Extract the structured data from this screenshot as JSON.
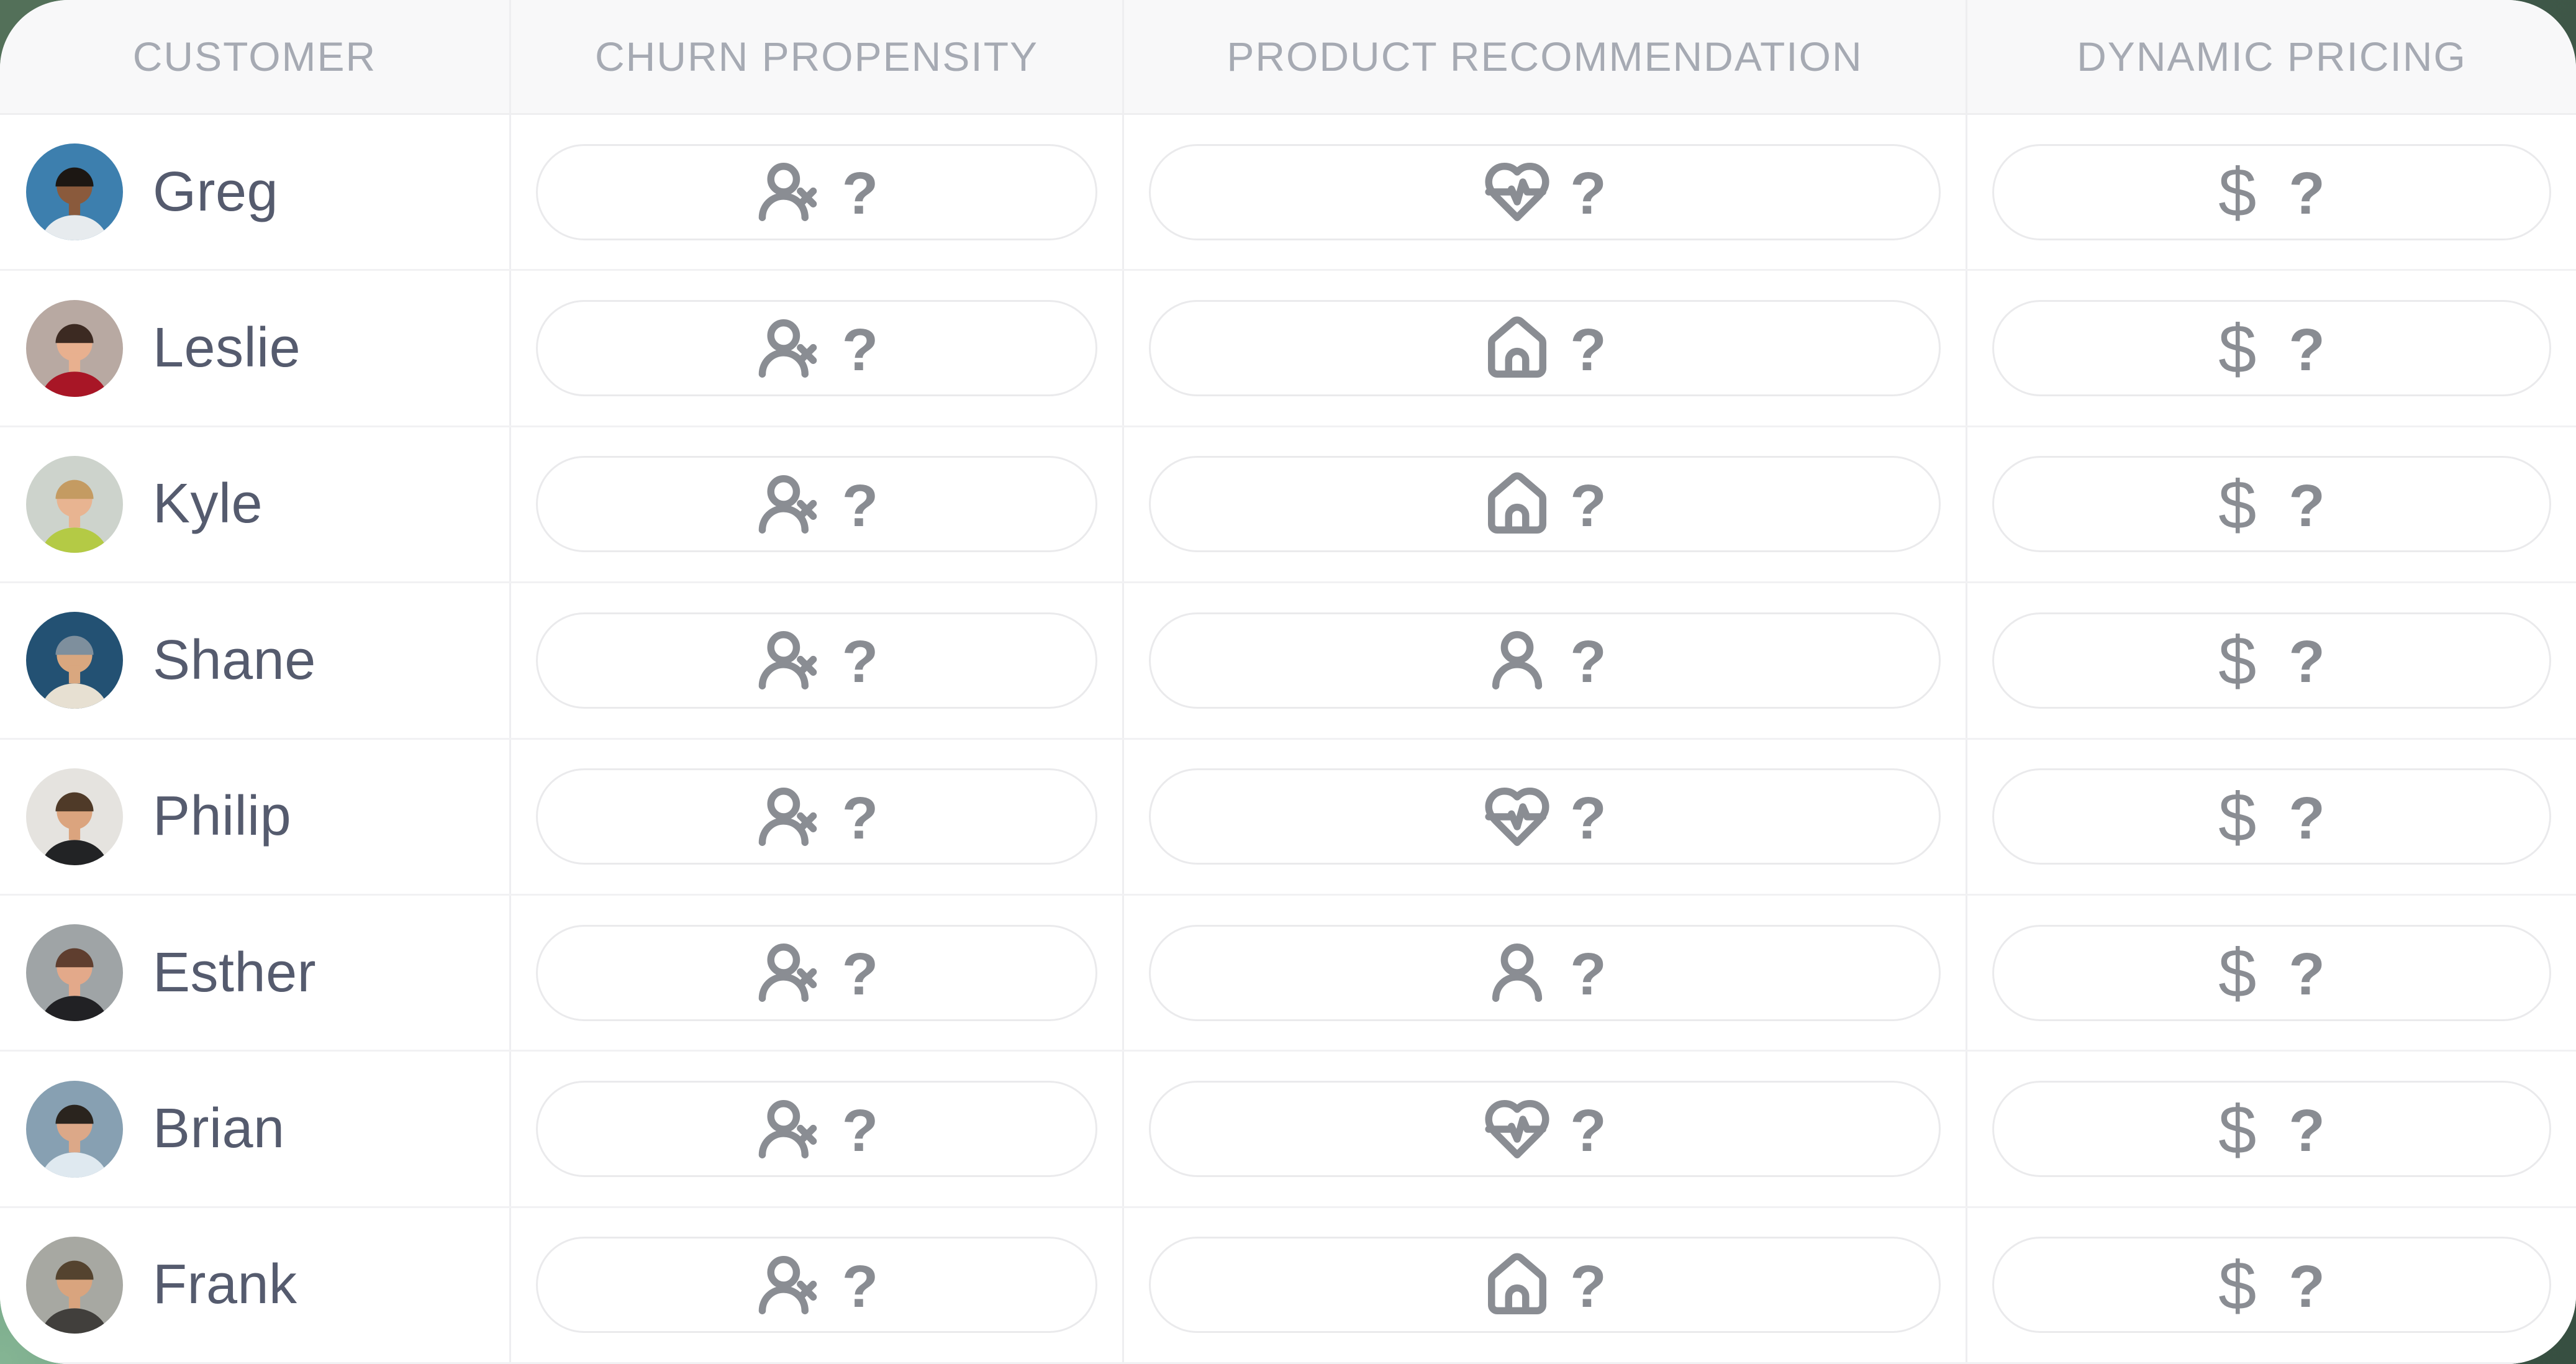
{
  "header": {
    "columns": [
      "CUSTOMER",
      "CHURN PROPENSITY",
      "PRODUCT RECOMMENDATION",
      "DYNAMIC PRICING"
    ]
  },
  "rows": [
    {
      "name": "Greg",
      "avatar": {
        "alt": "man with glasses, blue background",
        "bg": "#3d7fae",
        "skin": "#8a5a3c",
        "hair": "#1c1713",
        "shirt": "#e7ebee"
      },
      "churn": {
        "icon": "user-x",
        "value": "?"
      },
      "product": {
        "icon": "heart-pulse",
        "value": "?"
      },
      "pricing": {
        "icon": "dollar-sign",
        "icon_char": "$",
        "value": "?"
      }
    },
    {
      "name": "Leslie",
      "avatar": {
        "alt": "smiling woman in red sweater",
        "bg": "#b8a9a2",
        "skin": "#e8b08f",
        "hair": "#3c2a22",
        "shirt": "#a81626"
      },
      "churn": {
        "icon": "user-x",
        "value": "?"
      },
      "product": {
        "icon": "house",
        "value": "?"
      },
      "pricing": {
        "icon": "dollar-sign",
        "icon_char": "$",
        "value": "?"
      }
    },
    {
      "name": "Kyle",
      "avatar": {
        "alt": "woman in lime green sweater",
        "bg": "#cdd3cc",
        "skin": "#e8b491",
        "hair": "#c49b62",
        "shirt": "#b4ca45"
      },
      "churn": {
        "icon": "user-x",
        "value": "?"
      },
      "product": {
        "icon": "house",
        "value": "?"
      },
      "pricing": {
        "icon": "dollar-sign",
        "icon_char": "$",
        "value": "?"
      }
    },
    {
      "name": "Shane",
      "avatar": {
        "alt": "man with cap on dark blue background",
        "bg": "#235173",
        "skin": "#d9a77f",
        "hair": "#7e8f9d",
        "shirt": "#e7e0d2"
      },
      "churn": {
        "icon": "user-x",
        "value": "?"
      },
      "product": {
        "icon": "user",
        "value": "?"
      },
      "pricing": {
        "icon": "dollar-sign",
        "icon_char": "$",
        "value": "?"
      }
    },
    {
      "name": "Philip",
      "avatar": {
        "alt": "man with glasses in black shirt",
        "bg": "#e5e3df",
        "skin": "#dba47e",
        "hair": "#4f3a28",
        "shirt": "#222325"
      },
      "churn": {
        "icon": "user-x",
        "value": "?"
      },
      "product": {
        "icon": "heart-pulse",
        "value": "?"
      },
      "pricing": {
        "icon": "dollar-sign",
        "icon_char": "$",
        "value": "?"
      }
    },
    {
      "name": "Esther",
      "avatar": {
        "alt": "woman in black jacket on city street",
        "bg": "#9fa4a6",
        "skin": "#e3a98a",
        "hair": "#5f3e2f",
        "shirt": "#212124"
      },
      "churn": {
        "icon": "user-x",
        "value": "?"
      },
      "product": {
        "icon": "user",
        "value": "?"
      },
      "pricing": {
        "icon": "dollar-sign",
        "icon_char": "$",
        "value": "?"
      }
    },
    {
      "name": "Brian",
      "avatar": {
        "alt": "man with dark hair on blue-gray background",
        "bg": "#87a0b2",
        "skin": "#dca888",
        "hair": "#2a241e",
        "shirt": "#dfe9f0"
      },
      "churn": {
        "icon": "user-x",
        "value": "?"
      },
      "product": {
        "icon": "heart-pulse",
        "value": "?"
      },
      "pricing": {
        "icon": "dollar-sign",
        "icon_char": "$",
        "value": "?"
      }
    },
    {
      "name": "Frank",
      "avatar": {
        "alt": "man with glasses looking at phone on street",
        "bg": "#a7a8a2",
        "skin": "#d9a47e",
        "hair": "#54432f",
        "shirt": "#413f3c"
      },
      "churn": {
        "icon": "user-x",
        "value": "?"
      },
      "product": {
        "icon": "house",
        "value": "?"
      },
      "pricing": {
        "icon": "dollar-sign",
        "icon_char": "$",
        "value": "?"
      }
    }
  ],
  "colors": {
    "backdrop_green_dark": "#3a5545",
    "backdrop_green_light": "#84b493",
    "header_background": "#f8f8f9",
    "header_text": "#a6aab3",
    "row_background": "#ffffff",
    "name_text": "#555b6e",
    "icon_gray": "#8a8d93",
    "pill_border": "#eaeaec",
    "divider": "#f0f0f2"
  }
}
